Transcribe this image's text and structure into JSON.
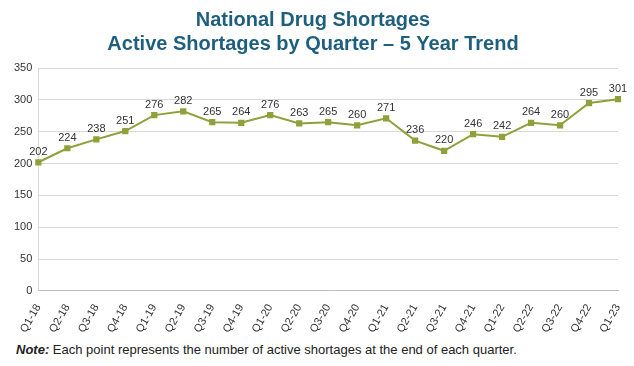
{
  "chart_data": {
    "type": "line",
    "title": [
      "National Drug Shortages",
      "Active Shortages by Quarter – 5 Year Trend"
    ],
    "categories": [
      "Q1-18",
      "Q2-18",
      "Q3-18",
      "Q4-18",
      "Q1-19",
      "Q2-19",
      "Q3-19",
      "Q4-19",
      "Q1-20",
      "Q2-20",
      "Q3-20",
      "Q4-20",
      "Q1-21",
      "Q2-21",
      "Q3-21",
      "Q4-21",
      "Q1-22",
      "Q2-22",
      "Q3-22",
      "Q4-22",
      "Q1-23"
    ],
    "values": [
      202,
      224,
      238,
      251,
      276,
      282,
      265,
      264,
      276,
      263,
      265,
      260,
      271,
      236,
      220,
      246,
      242,
      264,
      260,
      295,
      301
    ],
    "color": "#8ea13a",
    "marker": "square",
    "line_style": "solid",
    "data_labels": true,
    "ylim": [
      0,
      350
    ],
    "yticks": [
      0,
      50,
      100,
      150,
      200,
      250,
      300,
      350
    ],
    "grid": true,
    "note": "Note: Each point represents the number of active shortages at the end of each quarter."
  }
}
